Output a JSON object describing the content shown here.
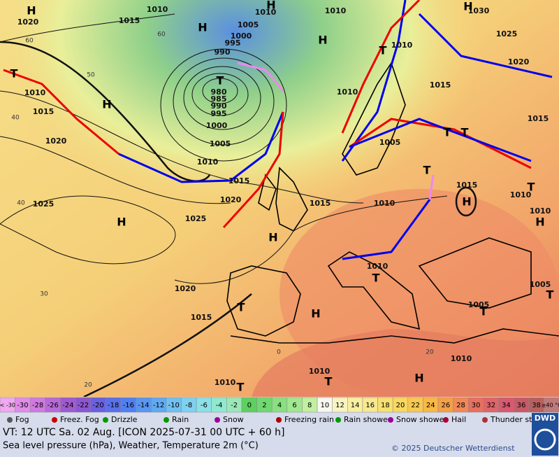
{
  "map": {
    "isobar_labels": [
      "1010",
      "1010",
      "1010",
      "1015",
      "1020",
      "1005",
      "1000",
      "995",
      "990",
      "980",
      "985",
      "990",
      "995",
      "1000",
      "1005",
      "1010",
      "1015",
      "1020",
      "1025",
      "1010",
      "1015",
      "1020",
      "1025",
      "1020",
      "1015",
      "1010",
      "1005",
      "1010",
      "1025",
      "1030",
      "1020",
      "1015",
      "1015",
      "1015",
      "1010",
      "1010",
      "1015",
      "1010",
      "1010",
      "1005",
      "1005",
      "1010",
      "1010",
      "1010"
    ],
    "centers": [
      "H",
      "H",
      "H",
      "H",
      "H",
      "T",
      "T",
      "H",
      "H",
      "H",
      "T",
      "T",
      "T",
      "T",
      "H",
      "T",
      "H",
      "T",
      "H",
      "T",
      "T",
      "T",
      "T",
      "H",
      "T"
    ],
    "grid_labels": [
      "60",
      "60",
      "50",
      "40",
      "40",
      "30",
      "20",
      "0",
      "20"
    ]
  },
  "scale": {
    "labels": [
      "< -30",
      "-30",
      "-28",
      "-26",
      "-24",
      "-22",
      "-20",
      "-18",
      "-16",
      "-14",
      "-12",
      "-10",
      "-8",
      "-6",
      "-4",
      "-2",
      "0",
      "2",
      "4",
      "6",
      "8",
      "10",
      "12",
      "14",
      "16",
      "18",
      "20",
      "22",
      "24",
      "26",
      "28",
      "30",
      "32",
      "34",
      "36",
      "38",
      "≥40 °C"
    ]
  },
  "legend": {
    "items": [
      "Fog",
      "Freez. Fog",
      "Drizzle",
      "Rain",
      "Snow",
      "Freezing rain",
      "Rain shower",
      "Snow shower",
      "Hail",
      "Thunder storm"
    ]
  },
  "footer": {
    "valid_time": "VT: 12 UTC Sa.  02 Aug. [ICON 2025-07-31  00 UTC + 60 h]",
    "description": "Sea level pressure (hPa), Weather, Temperature 2m (°C)",
    "copyright": "© 2025 Deutscher Wetterdienst",
    "logo": "DWD"
  }
}
